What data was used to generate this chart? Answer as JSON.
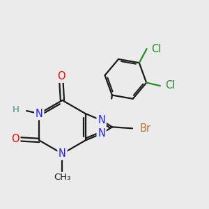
{
  "background_color": "#ebebeb",
  "bond_color": "#1a1a1a",
  "bond_width": 1.6,
  "atom_colors": {
    "N": "#2020ff",
    "O": "#ff0000",
    "Br": "#b87333",
    "Cl": "#228B22",
    "C": "#1a1a1a",
    "H": "#2e8b8b"
  },
  "font_size": 10.5,
  "font_size_small": 9.0
}
